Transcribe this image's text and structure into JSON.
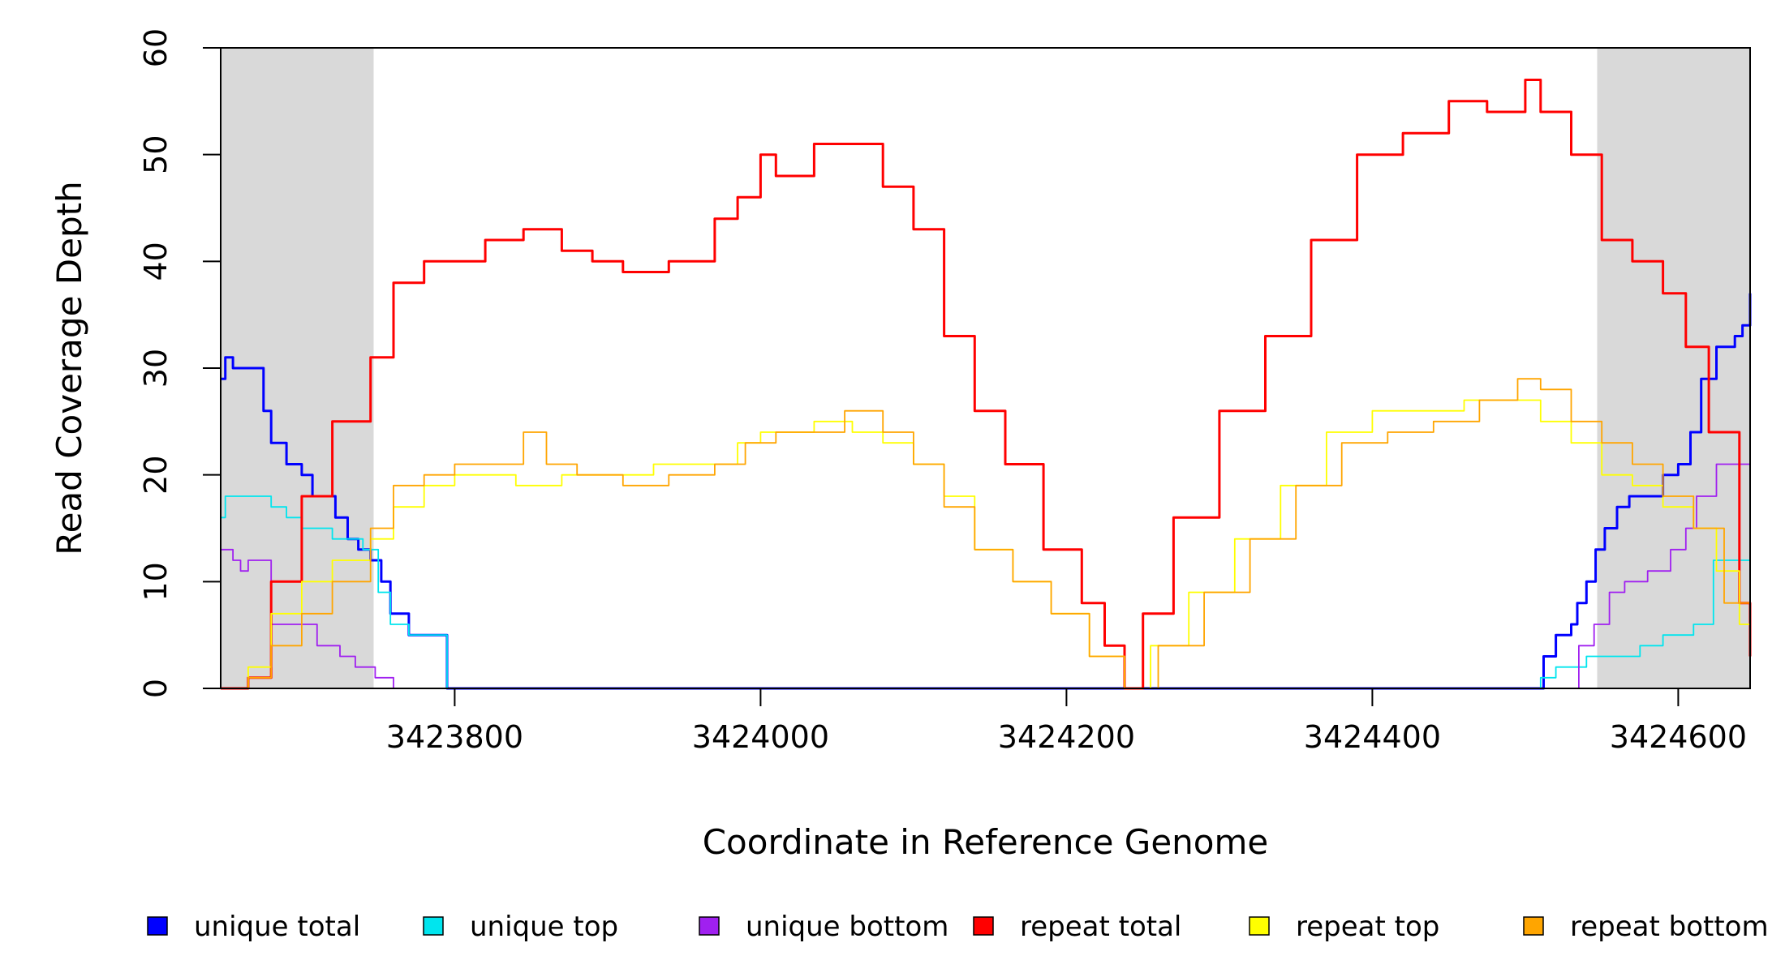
{
  "chart_data": {
    "type": "line",
    "title": "",
    "xlabel": "Coordinate in Reference Genome",
    "ylabel": "Read Coverage Depth",
    "xlim": [
      3423647,
      3424647
    ],
    "ylim": [
      0,
      60
    ],
    "x_ticks": [
      3423800,
      3424000,
      3424200,
      3424400,
      3424600
    ],
    "x_tick_labels": [
      "3423800",
      "3424000",
      "3424200",
      "3424400",
      "3424600"
    ],
    "y_ticks": [
      0,
      10,
      20,
      30,
      40,
      50,
      60
    ],
    "y_tick_labels": [
      "0",
      "10",
      "20",
      "30",
      "40",
      "50",
      "60"
    ],
    "shaded_regions": [
      [
        3423647,
        3423747
      ],
      [
        3424547,
        3424647
      ]
    ],
    "shaded_color": "#d9d9d9",
    "legend_position": "bottom",
    "grid": false,
    "series": [
      {
        "name": "unique total",
        "color": "#0000ff",
        "x": [
          3423647,
          3423650,
          3423655,
          3423660,
          3423672,
          3423675,
          3423680,
          3423690,
          3423700,
          3423707,
          3423722,
          3423730,
          3423737,
          3423745,
          3423752,
          3423758,
          3423770,
          3423777,
          3423795,
          3423795,
          3424506,
          3424512,
          3424520,
          3424530,
          3424534,
          3424540,
          3424546,
          3424552,
          3424560,
          3424568,
          3424580,
          3424590,
          3424600,
          3424608,
          3424615,
          3424625,
          3424637,
          3424642,
          3424647
        ],
        "y": [
          29,
          31,
          30,
          30,
          30,
          26,
          23,
          21,
          20,
          18,
          16,
          14,
          13,
          12,
          10,
          7,
          5,
          5,
          2,
          0,
          0,
          3,
          5,
          6,
          8,
          10,
          13,
          15,
          17,
          18,
          18,
          20,
          21,
          24,
          29,
          32,
          33,
          34,
          37
        ]
      },
      {
        "name": "unique top",
        "color": "#00e5ee",
        "x": [
          3423647,
          3423650,
          3423675,
          3423680,
          3423690,
          3423700,
          3423720,
          3423740,
          3423750,
          3423758,
          3423770,
          3423795,
          3423795,
          3424504,
          3424510,
          3424520,
          3424540,
          3424560,
          3424575,
          3424590,
          3424610,
          3424623,
          3424647
        ],
        "y": [
          16,
          18,
          18,
          17,
          16,
          15,
          14,
          13,
          9,
          6,
          5,
          5,
          0,
          0,
          1,
          2,
          3,
          3,
          4,
          5,
          6,
          12,
          15
        ]
      },
      {
        "name": "unique bottom",
        "color": "#a020f0",
        "x": [
          3423647,
          3423655,
          3423660,
          3423665,
          3423670,
          3423680,
          3423700,
          3423710,
          3423725,
          3423735,
          3423748,
          3423758,
          3423760,
          3424525,
          3424535,
          3424545,
          3424555,
          3424565,
          3424580,
          3424595,
          3424605,
          3424612,
          3424625,
          3424647
        ],
        "y": [
          13,
          12,
          11,
          12,
          12,
          6,
          6,
          4,
          3,
          2,
          1,
          1,
          0,
          0,
          4,
          6,
          9,
          10,
          11,
          13,
          15,
          18,
          21,
          22
        ]
      },
      {
        "name": "repeat total",
        "color": "#ff0000",
        "x": [
          3423647,
          3423665,
          3423680,
          3423700,
          3423720,
          3423745,
          3423760,
          3423780,
          3423800,
          3423820,
          3423845,
          3423870,
          3423890,
          3423910,
          3423940,
          3423970,
          3423985,
          3424000,
          3424010,
          3424035,
          3424060,
          3424080,
          3424100,
          3424120,
          3424140,
          3424160,
          3424185,
          3424210,
          3424225,
          3424238,
          3424250,
          3424270,
          3424300,
          3424330,
          3424360,
          3424390,
          3424420,
          3424450,
          3424475,
          3424500,
          3424510,
          3424530,
          3424550,
          3424570,
          3424590,
          3424605,
          3424620,
          3424640,
          3424647
        ],
        "y": [
          0,
          1,
          10,
          18,
          25,
          31,
          38,
          40,
          40,
          42,
          43,
          41,
          40,
          39,
          40,
          44,
          46,
          50,
          48,
          51,
          51,
          47,
          43,
          33,
          26,
          21,
          13,
          8,
          4,
          0,
          7,
          16,
          26,
          33,
          42,
          50,
          52,
          55,
          54,
          57,
          54,
          50,
          42,
          40,
          37,
          32,
          24,
          8,
          3
        ]
      },
      {
        "name": "repeat top",
        "color": "#ffff00",
        "x": [
          3423647,
          3423665,
          3423680,
          3423700,
          3423720,
          3423745,
          3423760,
          3423780,
          3423800,
          3423820,
          3423840,
          3423870,
          3423900,
          3423930,
          3423960,
          3423985,
          3424000,
          3424015,
          3424035,
          3424060,
          3424080,
          3424100,
          3424120,
          3424140,
          3424165,
          3424190,
          3424215,
          3424238,
          3424255,
          3424280,
          3424310,
          3424340,
          3424370,
          3424400,
          3424430,
          3424460,
          3424480,
          3424500,
          3424510,
          3424530,
          3424550,
          3424570,
          3424590,
          3424610,
          3424625,
          3424640,
          3424647
        ],
        "y": [
          0,
          2,
          7,
          10,
          12,
          14,
          17,
          19,
          20,
          20,
          19,
          20,
          20,
          21,
          21,
          23,
          24,
          24,
          25,
          24,
          23,
          21,
          18,
          13,
          10,
          7,
          3,
          0,
          4,
          9,
          14,
          19,
          24,
          26,
          26,
          27,
          27,
          27,
          25,
          23,
          20,
          19,
          17,
          15,
          11,
          6,
          2
        ]
      },
      {
        "name": "repeat bottom",
        "color": "#ffa500",
        "x": [
          3423647,
          3423665,
          3423680,
          3423700,
          3423720,
          3423745,
          3423760,
          3423780,
          3423800,
          3423820,
          3423845,
          3423860,
          3423880,
          3423910,
          3423940,
          3423970,
          3423990,
          3424010,
          3424030,
          3424055,
          3424080,
          3424100,
          3424120,
          3424140,
          3424165,
          3424190,
          3424215,
          3424238,
          3424260,
          3424290,
          3424320,
          3424350,
          3424380,
          3424410,
          3424440,
          3424470,
          3424495,
          3424510,
          3424530,
          3424550,
          3424570,
          3424590,
          3424610,
          3424630,
          3424647
        ],
        "y": [
          0,
          1,
          4,
          7,
          10,
          15,
          19,
          20,
          21,
          21,
          24,
          21,
          20,
          19,
          20,
          21,
          23,
          24,
          24,
          26,
          24,
          21,
          17,
          13,
          10,
          7,
          3,
          0,
          4,
          9,
          14,
          19,
          23,
          24,
          25,
          27,
          29,
          28,
          25,
          23,
          21,
          18,
          15,
          8,
          2
        ]
      }
    ]
  }
}
